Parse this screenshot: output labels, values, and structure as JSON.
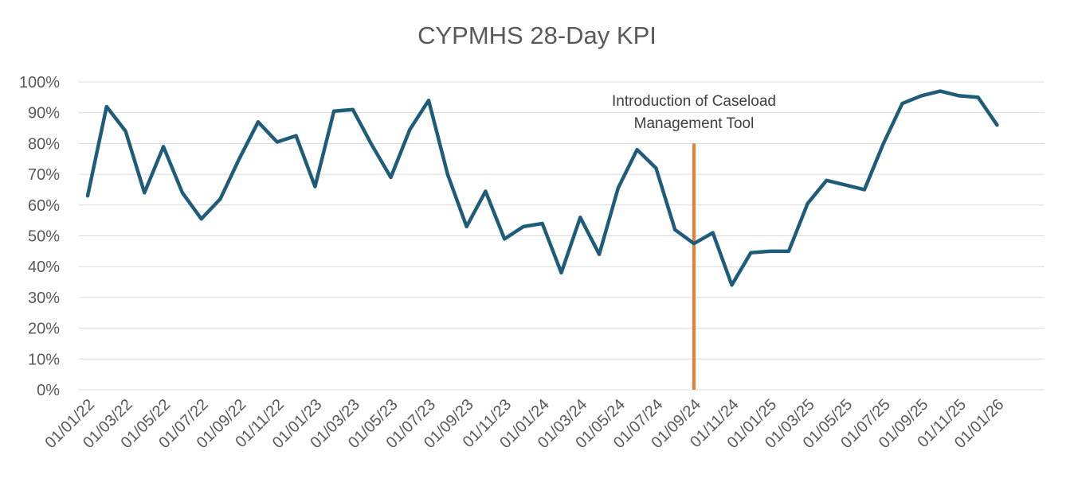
{
  "chart_data": {
    "type": "line",
    "title": "CYPMHS 28-Day KPI",
    "xlabel": "",
    "ylabel": "",
    "ylim": [
      0,
      100
    ],
    "y_ticks": [
      "0%",
      "10%",
      "20%",
      "30%",
      "40%",
      "50%",
      "60%",
      "70%",
      "80%",
      "90%",
      "100%"
    ],
    "x_tick_labels": [
      "01/01/22",
      "01/03/22",
      "01/05/22",
      "01/07/22",
      "01/09/22",
      "01/11/22",
      "01/01/23",
      "01/03/23",
      "01/05/23",
      "01/07/23",
      "01/09/23",
      "01/11/23",
      "01/01/24",
      "01/03/24",
      "01/05/24",
      "01/07/24",
      "01/09/24",
      "01/11/24",
      "01/01/25",
      "01/03/25",
      "01/05/25",
      "01/07/25",
      "01/09/25",
      "01/11/25",
      "01/01/26"
    ],
    "grid": true,
    "colors": {
      "series": "#1f5c7a",
      "marker": "#ed7d31",
      "grid": "#d9d9d9",
      "text": "#595959"
    },
    "series": [
      {
        "x": [
          "01/01/22",
          "01/02/22",
          "01/03/22",
          "01/04/22",
          "01/05/22",
          "01/06/22",
          "01/07/22",
          "01/08/22",
          "01/09/22",
          "01/10/22",
          "01/11/22",
          "01/12/22",
          "01/01/23",
          "01/02/23",
          "01/03/23",
          "01/04/23",
          "01/05/23",
          "01/06/23",
          "01/07/23",
          "01/08/23",
          "01/09/23",
          "01/10/23",
          "01/11/23",
          "01/12/23",
          "01/01/24",
          "01/02/24",
          "01/03/24",
          "01/04/24",
          "01/05/24",
          "01/06/24",
          "01/07/24",
          "01/08/24",
          "01/09/24",
          "01/10/24",
          "01/11/24",
          "01/12/24",
          "01/01/25",
          "01/02/25",
          "01/03/25",
          "01/04/25",
          "01/05/25",
          "01/06/25",
          "01/07/25",
          "01/08/25",
          "01/09/25",
          "01/10/25",
          "01/11/25",
          "01/12/25",
          "01/01/26"
        ],
        "values": [
          63,
          92,
          84,
          64,
          79,
          64,
          55.5,
          62,
          75,
          87,
          80.5,
          82.5,
          66,
          90.5,
          91,
          79.5,
          69,
          84.5,
          94,
          70,
          53,
          64.5,
          49,
          53,
          54,
          38,
          56,
          44,
          65.5,
          78,
          72,
          52,
          47.5,
          51,
          34,
          44.5,
          45,
          45,
          60.5,
          68,
          66.5,
          65,
          80,
          93,
          95.5,
          97,
          95.5,
          95,
          86
        ]
      }
    ],
    "annotation": {
      "x": "01/09/24",
      "y_range": [
        0,
        80
      ],
      "line1": "Introduction of Caseload",
      "line2": "Management Tool"
    }
  }
}
